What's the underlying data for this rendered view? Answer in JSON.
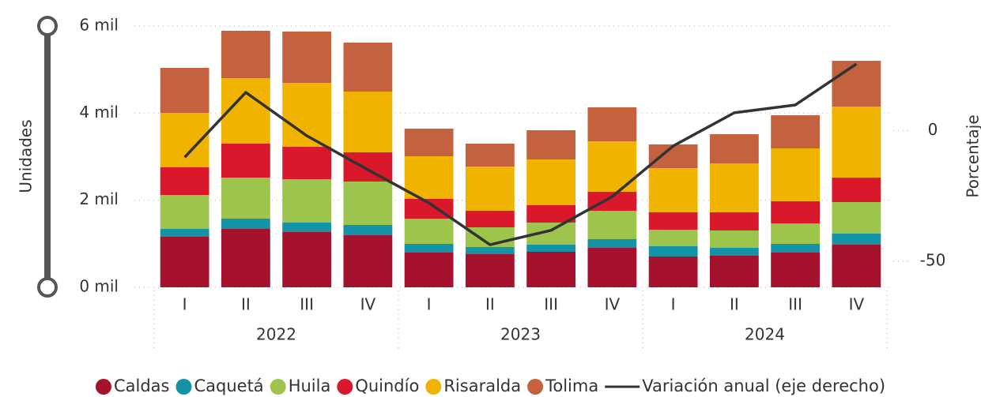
{
  "chart_data": {
    "type": "bar",
    "stacked": true,
    "ylabel": "Unidades",
    "y2label": "Porcentaje",
    "categories": [
      "I",
      "II",
      "III",
      "IV",
      "I",
      "II",
      "III",
      "IV",
      "I",
      "II",
      "III",
      "IV"
    ],
    "years": [
      "2022",
      "2023",
      "2024"
    ],
    "ylim": [
      0,
      6000
    ],
    "yticks": [
      {
        "value": 0,
        "label": "0 mil"
      },
      {
        "value": 2000,
        "label": "2 mil"
      },
      {
        "value": 4000,
        "label": "4 mil"
      },
      {
        "value": 6000,
        "label": "6 mil"
      }
    ],
    "y2lim": [
      -60,
      40
    ],
    "y2ticks": [
      -50,
      0
    ],
    "grid": true,
    "legend": "bottom",
    "series": [
      {
        "name": "Caldas",
        "color": "#a4122d",
        "values": [
          1160,
          1341,
          1269,
          1196,
          798,
          761,
          816,
          906,
          707,
          725,
          798,
          979
        ]
      },
      {
        "name": "Caquetá",
        "color": "#1393a5",
        "values": [
          181,
          236,
          217,
          236,
          199,
          163,
          163,
          200,
          236,
          181,
          199,
          254
        ]
      },
      {
        "name": "Huila",
        "color": "#9dc44d",
        "values": [
          780,
          942,
          997,
          997,
          580,
          454,
          507,
          652,
          380,
          399,
          471,
          725
        ]
      },
      {
        "name": "Quindío",
        "color": "#d9182b",
        "values": [
          634,
          780,
          743,
          671,
          453,
          380,
          399,
          435,
          399,
          417,
          508,
          561
        ]
      },
      {
        "name": "Risaralda",
        "color": "#f0b400",
        "values": [
          1251,
          1504,
          1469,
          1395,
          979,
          1015,
          1051,
          1160,
          1015,
          1124,
          1214,
          1632
        ]
      },
      {
        "name": "Tolima",
        "color": "#c4613f",
        "values": [
          1033,
          1088,
          1178,
          1124,
          634,
          526,
          671,
          780,
          544,
          670,
          761,
          1051
        ]
      },
      {
        "name": "Variación anual (eje derecho)",
        "color": "#333333",
        "axis": "y2",
        "values": [
          -10.2,
          14.6,
          -2.0,
          -15.0,
          -27.7,
          -43.7,
          -38.2,
          -25.3,
          -5.9,
          6.8,
          9.8,
          25.5
        ]
      }
    ]
  }
}
